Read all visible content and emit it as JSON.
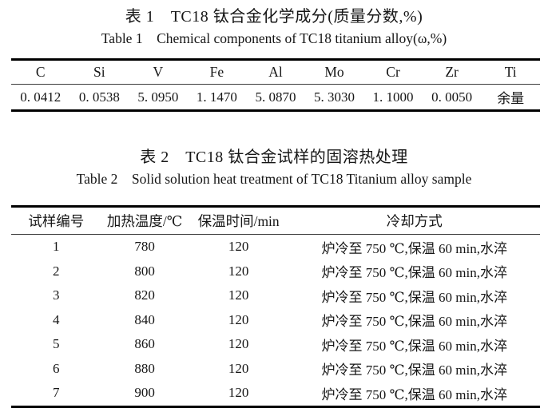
{
  "document": {
    "colors": {
      "background": "#ffffff",
      "text": "#161616",
      "rule_thick": "#000000",
      "rule_thin": "#3c3c3c"
    },
    "table1": {
      "title_zh": "表 1　TC18 钛合金化学成分(质量分数,%)",
      "title_en": "Table 1　Chemical components of TC18 titanium alloy(ω,%)",
      "columns": [
        "C",
        "Si",
        "V",
        "Fe",
        "Al",
        "Mo",
        "Cr",
        "Zr",
        "Ti"
      ],
      "values": [
        "0. 0412",
        "0. 0538",
        "5. 0950",
        "1. 1470",
        "5. 0870",
        "5. 3030",
        "1. 1000",
        "0. 0050",
        "余量"
      ]
    },
    "table2": {
      "title_zh": "表 2　TC18 钛合金试样的固溶热处理",
      "title_en": "Table 2　Solid solution heat treatment of TC18 Titanium alloy sample",
      "columns": [
        "试样编号",
        "加热温度/℃",
        "保温时间/min",
        "冷却方式"
      ],
      "rows": [
        [
          "1",
          "780",
          "120",
          "炉冷至 750 ℃,保温 60 min,水淬"
        ],
        [
          "2",
          "800",
          "120",
          "炉冷至 750 ℃,保温 60 min,水淬"
        ],
        [
          "3",
          "820",
          "120",
          "炉冷至 750 ℃,保温 60 min,水淬"
        ],
        [
          "4",
          "840",
          "120",
          "炉冷至 750 ℃,保温 60 min,水淬"
        ],
        [
          "5",
          "860",
          "120",
          "炉冷至 750 ℃,保温 60 min,水淬"
        ],
        [
          "6",
          "880",
          "120",
          "炉冷至 750 ℃,保温 60 min,水淬"
        ],
        [
          "7",
          "900",
          "120",
          "炉冷至 750 ℃,保温 60 min,水淬"
        ]
      ]
    }
  }
}
